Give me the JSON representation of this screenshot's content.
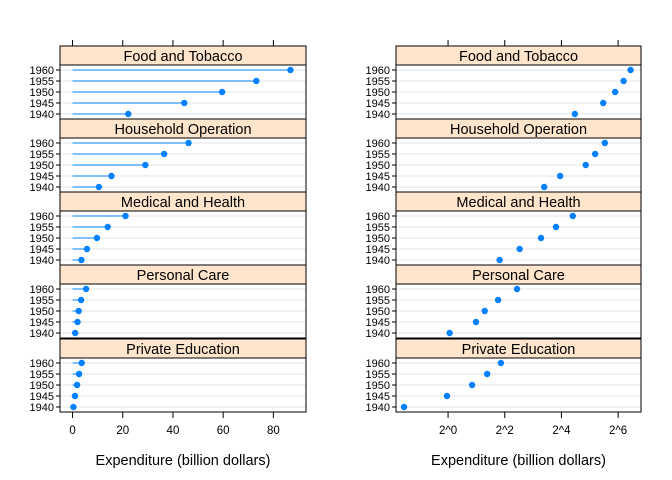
{
  "chart_data": [
    {
      "type": "scatter",
      "style": "dot-plot with droplines to zero",
      "scale": "linear",
      "xlabel": "Expenditure (billion dollars)",
      "xticks": [
        0,
        20,
        40,
        60,
        80
      ],
      "tick_labels": [
        "0",
        "20",
        "40",
        "60",
        "80"
      ],
      "xlim": [
        -5,
        93
      ],
      "years": [
        "1940",
        "1945",
        "1950",
        "1955",
        "1960"
      ],
      "panels": [
        {
          "name": "Food and Tobacco",
          "values": [
            22.2,
            44.5,
            59.6,
            73.2,
            86.8
          ]
        },
        {
          "name": "Household Operation",
          "values": [
            10.5,
            15.5,
            29.0,
            36.5,
            46.2
          ]
        },
        {
          "name": "Medical and Health",
          "values": [
            3.53,
            5.76,
            9.71,
            14.0,
            21.1
          ]
        },
        {
          "name": "Personal Care",
          "values": [
            1.04,
            1.98,
            2.45,
            3.4,
            5.4
          ]
        },
        {
          "name": "Private Education",
          "values": [
            0.341,
            0.974,
            1.8,
            2.6,
            3.64
          ]
        }
      ]
    },
    {
      "type": "scatter",
      "style": "dot-plot",
      "scale": "log2",
      "xlabel": "Expenditure (billion dollars)",
      "xticks": [
        1,
        4,
        16,
        64
      ],
      "tick_labels": [
        "2^0",
        "2^2",
        "2^4",
        "2^6"
      ],
      "xlim": [
        0.28,
        112
      ],
      "years": [
        "1940",
        "1945",
        "1950",
        "1955",
        "1960"
      ],
      "panels": [
        {
          "name": "Food and Tobacco",
          "values": [
            22.2,
            44.5,
            59.6,
            73.2,
            86.8
          ]
        },
        {
          "name": "Household Operation",
          "values": [
            10.5,
            15.5,
            29.0,
            36.5,
            46.2
          ]
        },
        {
          "name": "Medical and Health",
          "values": [
            3.53,
            5.76,
            9.71,
            14.0,
            21.1
          ]
        },
        {
          "name": "Personal Care",
          "values": [
            1.04,
            1.98,
            2.45,
            3.4,
            5.4
          ]
        },
        {
          "name": "Private Education",
          "values": [
            0.341,
            0.974,
            1.8,
            2.6,
            3.64
          ]
        }
      ]
    }
  ],
  "colors": {
    "point": "#0080ff",
    "strip": "#ffe5cc",
    "grid": "#e6e6e6",
    "border": "#000000"
  }
}
